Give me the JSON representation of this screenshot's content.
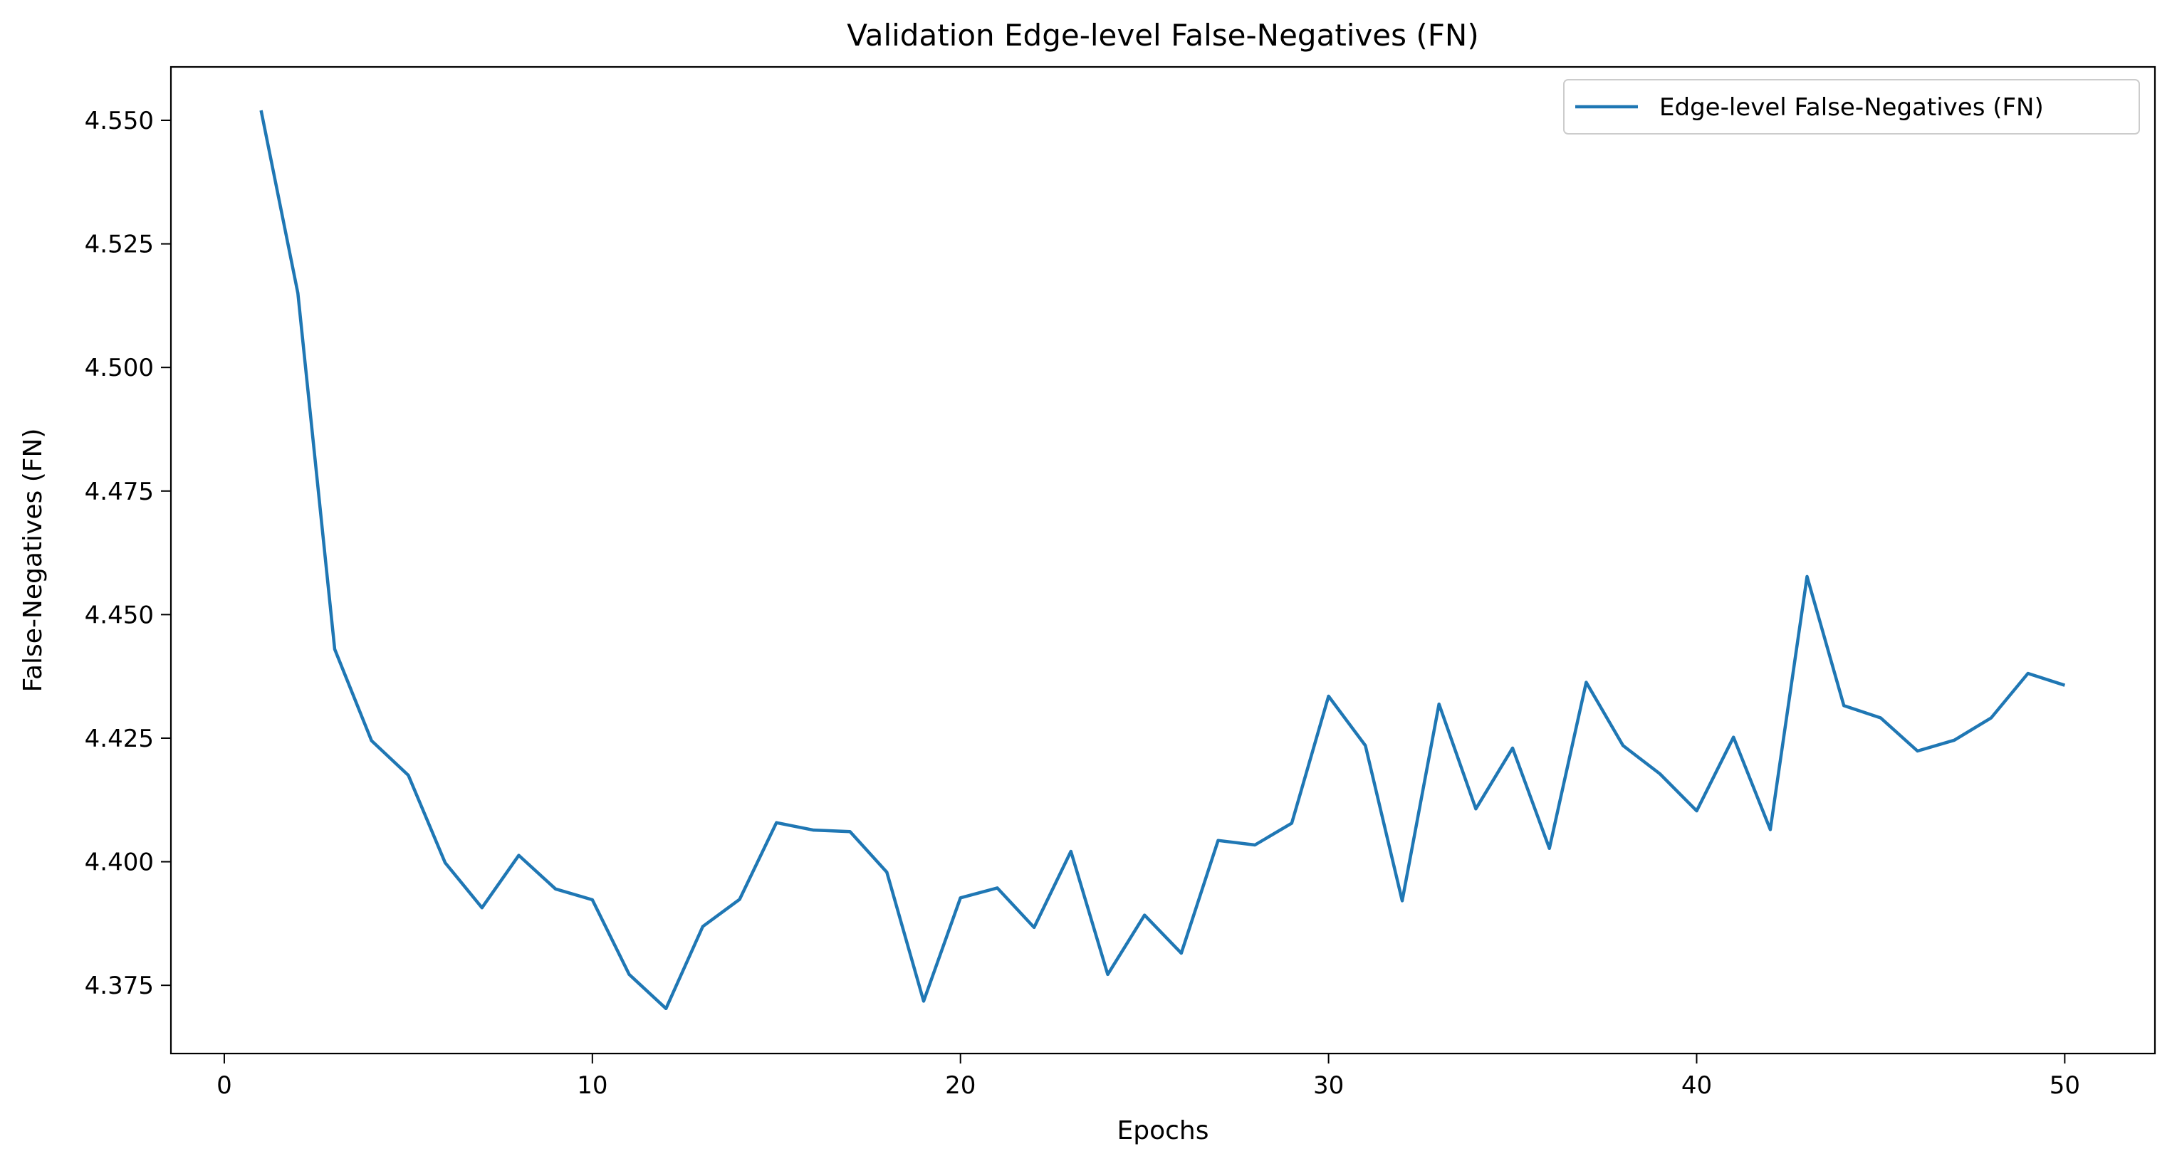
{
  "colors": {
    "series": "#1f77b4",
    "axis": "#000000",
    "background": "#ffffff",
    "legend_border": "#cccccc"
  },
  "chart_data": {
    "type": "line",
    "title": "Validation Edge-level False-Negatives (FN)",
    "xlabel": "Epochs",
    "ylabel": "False-Negatives (FN)",
    "xlim": [
      -1.45,
      52.45
    ],
    "ylim": [
      4.3612,
      4.5608
    ],
    "xticks": [
      0,
      10,
      20,
      30,
      40,
      50
    ],
    "xtick_labels": [
      "0",
      "10",
      "20",
      "30",
      "40",
      "50"
    ],
    "yticks": [
      4.375,
      4.4,
      4.425,
      4.45,
      4.475,
      4.5,
      4.525,
      4.55
    ],
    "ytick_labels": [
      "4.375",
      "4.400",
      "4.425",
      "4.450",
      "4.475",
      "4.500",
      "4.525",
      "4.550"
    ],
    "grid": false,
    "legend_position": "upper right",
    "series": [
      {
        "name": "Edge-level False-Negatives (FN)",
        "x": [
          1,
          2,
          3,
          4,
          5,
          6,
          7,
          8,
          9,
          10,
          11,
          12,
          13,
          14,
          15,
          16,
          17,
          18,
          19,
          20,
          21,
          22,
          23,
          24,
          25,
          26,
          27,
          28,
          29,
          30,
          31,
          32,
          33,
          34,
          35,
          36,
          37,
          38,
          39,
          40,
          41,
          42,
          43,
          44,
          45,
          46,
          47,
          48,
          49,
          50
        ],
        "y": [
          4.552,
          4.515,
          4.443,
          4.4245,
          4.4175,
          4.3998,
          4.3907,
          4.4013,
          4.3945,
          4.3923,
          4.3772,
          4.3703,
          4.3869,
          4.3924,
          4.4079,
          4.4064,
          4.4061,
          4.3979,
          4.3718,
          4.3927,
          4.3947,
          4.3867,
          4.4021,
          4.3772,
          4.3892,
          4.3815,
          4.4043,
          4.4034,
          4.4078,
          4.4335,
          4.4235,
          4.3921,
          4.4319,
          4.4107,
          4.423,
          4.4027,
          4.4363,
          4.4235,
          4.4178,
          4.4103,
          4.4252,
          4.4065,
          4.4577,
          4.4316,
          4.4291,
          4.4224,
          4.4246,
          4.4291,
          4.4381,
          4.4357
        ]
      }
    ]
  }
}
